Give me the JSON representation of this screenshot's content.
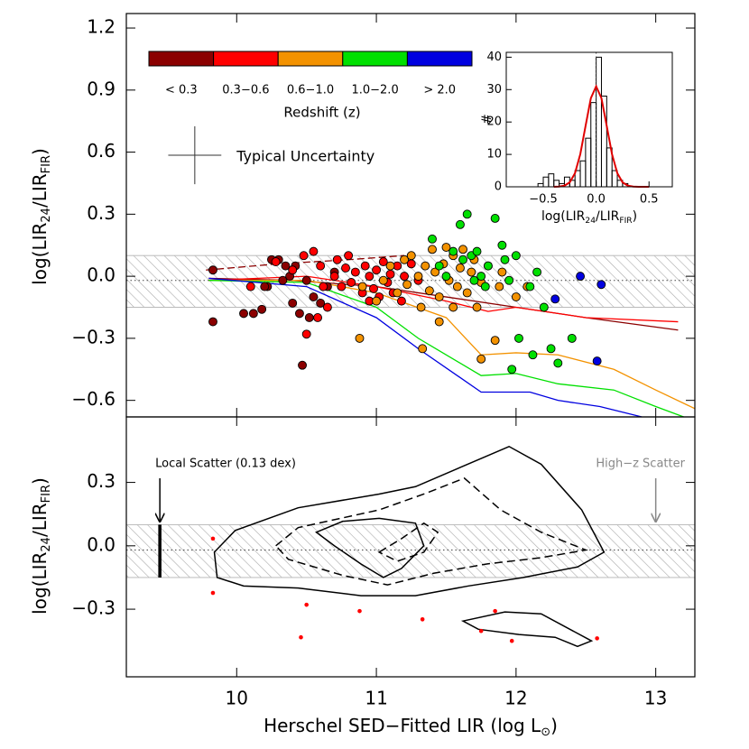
{
  "chart_data": [
    {
      "type": "scatter",
      "y_label": [
        {
          "text": "log(LIR"
        },
        {
          "text": "24",
          "sub": true
        },
        {
          "text": "/LIR"
        },
        {
          "text": "FIR",
          "sub": true
        },
        {
          "text": ")"
        }
      ],
      "xlim": [
        9.21,
        13.28
      ],
      "ylim": [
        -0.68,
        1.27
      ],
      "yticks": [
        {
          "value": 1.2,
          "label": "1.2"
        },
        {
          "value": 0.9,
          "label": "0.9"
        },
        {
          "value": 0.6,
          "label": "0.6"
        },
        {
          "value": 0.3,
          "label": "0.3"
        },
        {
          "value": 0.0,
          "label": "0.0"
        },
        {
          "value": -0.3,
          "label": "−0.3"
        },
        {
          "value": -0.6,
          "label": "−0.6"
        }
      ],
      "band": [
        -0.15,
        0.1
      ],
      "ref_line": -0.02,
      "colorbar_title": "Redshift (z)",
      "uncertainty": {
        "text": "Typical Uncertainty",
        "x": 9.7,
        "y": 0.585,
        "xerr": 0.19,
        "yerr": 0.14
      },
      "series": [
        {
          "name": "< 0.3",
          "color": "#8b0000",
          "x": [
            9.83,
            9.83,
            10.05,
            10.12,
            10.18,
            10.22,
            10.25,
            10.3,
            10.33,
            10.38,
            10.4,
            10.42,
            10.45,
            10.47,
            10.5,
            10.55,
            10.6,
            10.65,
            10.7,
            10.2,
            10.35,
            10.52
          ],
          "values": [
            0.03,
            -0.22,
            -0.18,
            -0.18,
            -0.16,
            -0.05,
            0.08,
            0.08,
            -0.02,
            0.0,
            -0.13,
            0.05,
            -0.18,
            -0.43,
            -0.02,
            -0.1,
            -0.13,
            -0.05,
            0.02,
            -0.05,
            0.05,
            -0.2
          ]
        },
        {
          "name": "0.3−0.6",
          "color": "#ff0000",
          "x": [
            10.1,
            10.28,
            10.4,
            10.48,
            10.5,
            10.55,
            10.6,
            10.62,
            10.65,
            10.7,
            10.72,
            10.75,
            10.8,
            10.82,
            10.85,
            10.9,
            10.92,
            10.95,
            10.98,
            11.0,
            11.02,
            11.05,
            11.08,
            11.1,
            11.12,
            11.15,
            11.18,
            11.2,
            11.25,
            10.58,
            10.78,
            10.95,
            11.3
          ],
          "values": [
            -0.05,
            0.07,
            0.03,
            0.1,
            -0.28,
            0.12,
            0.05,
            -0.05,
            -0.15,
            0.0,
            0.08,
            -0.05,
            0.1,
            -0.03,
            0.02,
            -0.08,
            0.05,
            0.0,
            -0.06,
            0.03,
            -0.1,
            0.07,
            -0.03,
            0.01,
            -0.08,
            0.05,
            -0.12,
            0.0,
            0.06,
            -0.2,
            0.04,
            -0.12,
            -0.02
          ]
        },
        {
          "name": "0.6−1.0",
          "color": "#f39200",
          "x": [
            10.9,
            11.0,
            11.05,
            11.1,
            11.15,
            11.2,
            11.22,
            11.25,
            11.3,
            11.32,
            11.33,
            11.35,
            11.38,
            11.4,
            11.42,
            11.45,
            11.48,
            11.5,
            11.52,
            11.55,
            11.58,
            11.6,
            11.62,
            11.65,
            11.68,
            11.7,
            11.72,
            11.75,
            11.75,
            11.8,
            11.85,
            11.88,
            11.9,
            12.0,
            12.08,
            11.45,
            11.55,
            10.88
          ],
          "values": [
            -0.05,
            -0.12,
            -0.02,
            0.05,
            -0.08,
            0.08,
            -0.04,
            0.1,
            0.0,
            -0.15,
            -0.35,
            0.05,
            -0.07,
            0.13,
            0.02,
            -0.1,
            0.06,
            0.14,
            -0.02,
            0.1,
            -0.05,
            0.04,
            0.13,
            -0.08,
            0.02,
            0.08,
            -0.15,
            -0.03,
            -0.4,
            0.05,
            -0.31,
            -0.05,
            0.02,
            -0.1,
            -0.05,
            -0.22,
            -0.15,
            -0.3
          ]
        },
        {
          "name": "1.0−2.0",
          "color": "#00e000",
          "x": [
            11.4,
            11.45,
            11.5,
            11.55,
            11.6,
            11.62,
            11.65,
            11.68,
            11.7,
            11.72,
            11.75,
            11.8,
            11.85,
            11.9,
            11.92,
            11.95,
            12.0,
            12.02,
            12.1,
            12.12,
            12.15,
            12.2,
            12.25,
            12.3,
            12.4,
            11.97,
            11.78
          ],
          "values": [
            0.18,
            0.05,
            0.0,
            0.12,
            0.25,
            0.08,
            0.3,
            0.1,
            -0.02,
            0.12,
            0.0,
            0.05,
            0.28,
            0.15,
            0.08,
            -0.02,
            0.1,
            -0.3,
            -0.05,
            -0.38,
            0.02,
            -0.15,
            -0.35,
            -0.42,
            -0.3,
            -0.45,
            -0.05
          ]
        },
        {
          "name": "> 2.0",
          "color": "#0000e0",
          "x": [
            12.28,
            12.46,
            12.61,
            12.58
          ],
          "values": [
            -0.11,
            0.0,
            -0.04,
            -0.41
          ]
        }
      ],
      "lines": [
        {
          "color": "#8b0000",
          "dashed": true,
          "x": [
            9.78,
            10.3,
            10.8,
            11.2
          ],
          "values": [
            0.03,
            0.06,
            0.08,
            0.1
          ]
        },
        {
          "color": "#8b0000",
          "dashed": false,
          "x": [
            9.8,
            10.4,
            11.0,
            11.5,
            12.0,
            12.5,
            13.16
          ],
          "values": [
            -0.01,
            -0.02,
            -0.05,
            -0.1,
            -0.15,
            -0.2,
            -0.26
          ]
        },
        {
          "color": "#ff0000",
          "dashed": false,
          "x": [
            9.8,
            10.5,
            11.0,
            11.5,
            11.8,
            12.0,
            12.5,
            13.16
          ],
          "values": [
            -0.02,
            0.0,
            -0.05,
            -0.12,
            -0.17,
            -0.15,
            -0.2,
            -0.22
          ]
        },
        {
          "color": "#f39200",
          "dashed": false,
          "x": [
            9.8,
            10.5,
            11.0,
            11.5,
            11.75,
            12.0,
            12.3,
            12.7,
            13.0,
            13.28
          ],
          "values": [
            -0.02,
            -0.02,
            -0.08,
            -0.2,
            -0.38,
            -0.37,
            -0.38,
            -0.45,
            -0.55,
            -0.64
          ]
        },
        {
          "color": "#00e000",
          "dashed": false,
          "x": [
            9.8,
            10.5,
            11.0,
            11.3,
            11.75,
            12.0,
            12.3,
            12.7,
            13.0,
            13.2
          ],
          "values": [
            -0.02,
            -0.03,
            -0.15,
            -0.3,
            -0.48,
            -0.47,
            -0.52,
            -0.55,
            -0.63,
            -0.68
          ]
        },
        {
          "color": "#0000e0",
          "dashed": false,
          "x": [
            9.8,
            10.5,
            11.0,
            11.3,
            11.75,
            12.1,
            12.3,
            12.6,
            12.9
          ],
          "values": [
            -0.01,
            -0.05,
            -0.2,
            -0.35,
            -0.56,
            -0.56,
            -0.6,
            -0.63,
            -0.68
          ]
        }
      ]
    },
    {
      "type": "histogram",
      "x_label": [
        {
          "text": "log(LIR"
        },
        {
          "text": "24",
          "sub": true
        },
        {
          "text": "/LIR"
        },
        {
          "text": "FIR",
          "sub": true
        },
        {
          "text": ")"
        }
      ],
      "y_label": "#",
      "xlim": [
        -0.85,
        0.72
      ],
      "ylim": [
        0,
        41.5
      ],
      "xticks": [
        {
          "value": -0.5,
          "label": "−0.5"
        },
        {
          "value": 0.0,
          "label": "0.0"
        },
        0.5
      ],
      "yticks": [
        0,
        10,
        20,
        30,
        40
      ],
      "ref_line": 0,
      "bins": [
        -0.55,
        -0.5,
        -0.45,
        -0.4,
        -0.35,
        -0.3,
        -0.25,
        -0.2,
        -0.15,
        -0.1,
        -0.05,
        0.0,
        0.05,
        0.1,
        0.15,
        0.2,
        0.25,
        0.3
      ],
      "counts": [
        1,
        3,
        4,
        2,
        1,
        3,
        2,
        5,
        8,
        15,
        26,
        40,
        28,
        12,
        5,
        2,
        1
      ],
      "fit": {
        "color": "#e00000",
        "x": [
          -0.4,
          -0.35,
          -0.3,
          -0.25,
          -0.2,
          -0.15,
          -0.1,
          -0.05,
          0.0,
          0.05,
          0.1,
          0.15,
          0.2,
          0.25,
          0.3,
          0.35,
          0.4,
          0.45,
          0.5
        ],
        "values": [
          0.01,
          0.07,
          0.34,
          1.36,
          4.2,
          10.07,
          18.8,
          27.36,
          31,
          27.36,
          18.8,
          10.07,
          4.2,
          1.36,
          0.34,
          0.07,
          0.01,
          0,
          0
        ]
      }
    },
    {
      "type": "contour",
      "x_label": [
        {
          "text": "Herschel SED−Fitted LIR (log L"
        },
        {
          "text": "⊙",
          "sub": true
        },
        {
          "text": ")"
        }
      ],
      "y_label": [
        {
          "text": "log(LIR"
        },
        {
          "text": "24",
          "sub": true
        },
        {
          "text": "/LIR"
        },
        {
          "text": "FIR",
          "sub": true
        },
        {
          "text": ")"
        }
      ],
      "xlim": [
        9.21,
        13.28
      ],
      "ylim": [
        -0.62,
        0.61
      ],
      "xticks": [
        10,
        11,
        12,
        13
      ],
      "yticks": [
        0.3,
        {
          "value": 0.0,
          "label": "0.0"
        },
        {
          "value": -0.3,
          "label": "−0.3"
        }
      ],
      "band": [
        -0.15,
        0.1
      ],
      "ref_line": -0.02,
      "contours": [
        {
          "dashed": false,
          "x": [
            9.84,
            9.99,
            10.44,
            11.02,
            11.28,
            11.95,
            12.18,
            12.47,
            12.63,
            12.44,
            12.05,
            11.66,
            11.28,
            10.89,
            10.44,
            10.05,
            9.86
          ],
          "values": [
            -0.03,
            0.073,
            0.18,
            0.245,
            0.28,
            0.47,
            0.386,
            0.17,
            -0.03,
            -0.1,
            -0.15,
            -0.19,
            -0.236,
            -0.236,
            -0.2,
            -0.19,
            -0.15
          ]
        },
        {
          "dashed": true,
          "x": [
            10.28,
            10.44,
            11.02,
            11.34,
            11.63,
            11.89,
            12.18,
            12.5,
            12.18,
            11.79,
            11.41,
            11.08,
            10.76,
            10.37
          ],
          "values": [
            0,
            0.086,
            0.17,
            0.245,
            0.32,
            0.17,
            0.064,
            -0.02,
            -0.056,
            -0.086,
            -0.13,
            -0.185,
            -0.14,
            -0.064
          ]
        },
        {
          "dashed": false,
          "x": [
            10.57,
            10.76,
            11.02,
            11.28,
            11.34,
            11.18,
            11.05,
            10.89,
            10.7
          ],
          "values": [
            0.064,
            0.116,
            0.13,
            0.107,
            0,
            -0.107,
            -0.15,
            -0.086,
            0
          ]
        },
        {
          "dashed": true,
          "x": [
            11.02,
            11.18,
            11.34,
            11.44,
            11.34,
            11.15
          ],
          "values": [
            -0.03,
            0.034,
            0.107,
            0.064,
            -0.03,
            -0.073
          ]
        },
        {
          "dashed": false,
          "x": [
            11.62,
            11.92,
            12.18,
            12.54,
            12.44,
            12.28,
            12.02,
            11.73
          ],
          "values": [
            -0.356,
            -0.313,
            -0.322,
            -0.45,
            -0.476,
            -0.433,
            -0.42,
            -0.395
          ]
        }
      ],
      "outliers": {
        "color": "#ff0000",
        "x": [
          9.83,
          9.83,
          10.5,
          10.88,
          10.46,
          11.33,
          11.85,
          11.75,
          11.97,
          12.58
        ],
        "values": [
          0.034,
          -0.223,
          -0.279,
          -0.309,
          -0.433,
          -0.348,
          -0.309,
          -0.403,
          -0.45,
          -0.438
        ]
      },
      "local_scatter": {
        "text": "Local Scatter (0.13 dex)",
        "x": 9.45,
        "range": [
          -0.15,
          0.1
        ]
      },
      "high_z_scatter": {
        "text": "High−z Scatter",
        "x": 13.0
      }
    }
  ]
}
